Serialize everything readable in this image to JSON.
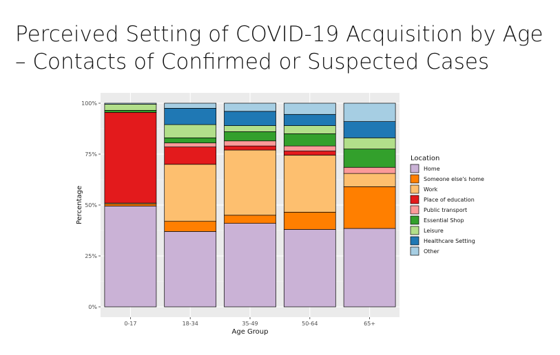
{
  "slide": {
    "title_line1": "Perceived Setting of COVID-19 Acquisition by Age",
    "title_line2": "– Contacts of Confirmed or Suspected Cases"
  },
  "chart_data": {
    "type": "bar",
    "stacked": true,
    "xlabel": "Age Group",
    "ylabel": "Percentage",
    "ylim": [
      0,
      100
    ],
    "yticks": [
      0,
      25,
      50,
      75,
      100
    ],
    "ytick_labels": [
      "0%",
      "25%",
      "50%",
      "75%",
      "100%"
    ],
    "categories": [
      "0-17",
      "18-34",
      "35-49",
      "50-64",
      "65+"
    ],
    "legend_title": "Location",
    "legend_position": "right",
    "series": [
      {
        "name": "Home",
        "color": "#cab2d6",
        "values": [
          49.5,
          37,
          41,
          38,
          38.5
        ]
      },
      {
        "name": "Someone else's home",
        "color": "#ff7f00",
        "values": [
          1,
          5,
          4,
          8.5,
          20.5
        ]
      },
      {
        "name": "Work",
        "color": "#fdbf6f",
        "values": [
          0.5,
          28,
          32,
          28,
          6.5
        ]
      },
      {
        "name": "Place of education",
        "color": "#e31a1c",
        "values": [
          44.5,
          8.5,
          2,
          2,
          0
        ]
      },
      {
        "name": "Public transport",
        "color": "#fb9a99",
        "values": [
          0,
          2,
          2.5,
          2.5,
          3
        ]
      },
      {
        "name": "Essential Shop",
        "color": "#33a02c",
        "values": [
          1,
          2.5,
          4.5,
          6,
          9
        ]
      },
      {
        "name": "Leisure",
        "color": "#b2df8a",
        "values": [
          3,
          6.5,
          3,
          4,
          5.5
        ]
      },
      {
        "name": "Healthcare Setting",
        "color": "#1f78b4",
        "values": [
          0,
          8,
          7,
          5.5,
          8
        ]
      },
      {
        "name": "Other",
        "color": "#a6cee3",
        "values": [
          0.5,
          2.5,
          4,
          5.5,
          9
        ]
      }
    ]
  }
}
